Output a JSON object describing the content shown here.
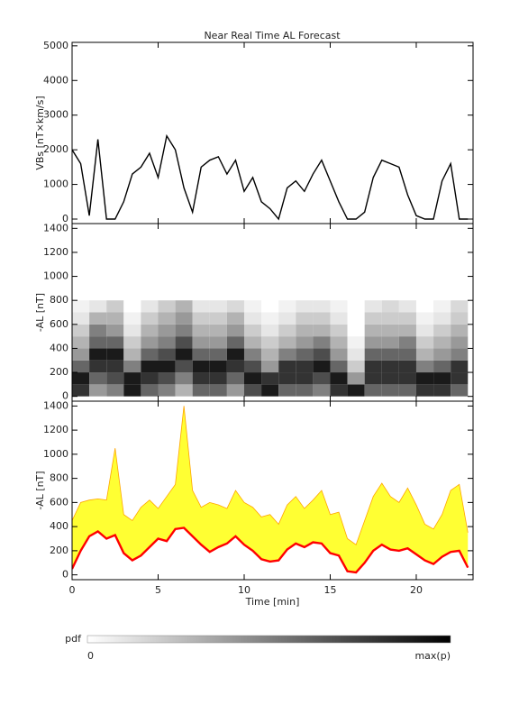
{
  "chart_data": [
    {
      "type": "line",
      "title": "Near Real Time AL Forecast",
      "ylabel": "VBs [nT×km/s]",
      "x": [
        0,
        0.5,
        1,
        1.5,
        2,
        2.5,
        3,
        3.5,
        4,
        4.5,
        5,
        5.5,
        6,
        6.5,
        7,
        7.5,
        8,
        8.5,
        9,
        9.5,
        10,
        10.5,
        11,
        11.5,
        12,
        12.5,
        13,
        13.5,
        14,
        14.5,
        15,
        15.5,
        16,
        16.5,
        17,
        17.5,
        18,
        18.5,
        19,
        19.5,
        20,
        20.5,
        21,
        21.5,
        22,
        22.5,
        23
      ],
      "series": [
        {
          "color": "#000000",
          "values": [
            2000,
            1600,
            100,
            2300,
            0,
            0,
            500,
            1300,
            1500,
            1900,
            1200,
            2400,
            2000,
            900,
            200,
            1500,
            1700,
            1800,
            1300,
            1700,
            800,
            1200,
            500,
            300,
            0,
            900,
            1100,
            800,
            1300,
            1700,
            1100,
            500,
            0,
            0,
            200,
            1200,
            1700,
            1600,
            1500,
            700,
            100,
            0,
            0,
            1100,
            1600,
            0,
            0
          ]
        }
      ],
      "xlim": [
        0,
        23.3
      ],
      "xticks": [
        0,
        5,
        10,
        15,
        20
      ],
      "ylim": [
        -130,
        5100
      ],
      "yticks": [
        0,
        1000,
        2000,
        3000,
        4000,
        5000
      ]
    },
    {
      "type": "heatmap",
      "ylabel": "-AL [nT]",
      "xbins": [
        0,
        1,
        2,
        3,
        4,
        5,
        6,
        7,
        8,
        9,
        10,
        11,
        12,
        13,
        14,
        15,
        16,
        17,
        18,
        19,
        20,
        21,
        22,
        23
      ],
      "ybins": [
        0,
        100,
        200,
        300,
        400,
        500,
        600,
        700,
        800
      ],
      "z": [
        [
          0.8,
          0.4,
          0.5,
          0.9,
          0.6,
          0.5,
          0.3,
          0.6,
          0.6,
          0.4,
          0.7,
          0.9,
          0.6,
          0.6,
          0.5,
          0.8,
          0.9,
          0.6,
          0.6,
          0.6,
          0.8,
          0.8,
          0.6
        ],
        [
          0.9,
          0.6,
          0.7,
          0.9,
          0.8,
          0.7,
          0.5,
          0.8,
          0.8,
          0.6,
          0.9,
          0.8,
          0.8,
          0.8,
          0.7,
          0.9,
          0.4,
          0.8,
          0.8,
          0.8,
          0.9,
          0.9,
          0.8
        ],
        [
          0.6,
          0.8,
          0.8,
          0.5,
          0.9,
          0.9,
          0.7,
          0.9,
          0.9,
          0.8,
          0.7,
          0.4,
          0.8,
          0.8,
          0.9,
          0.6,
          0.2,
          0.8,
          0.8,
          0.8,
          0.5,
          0.6,
          0.8
        ],
        [
          0.4,
          0.9,
          0.9,
          0.3,
          0.6,
          0.7,
          0.9,
          0.6,
          0.6,
          0.9,
          0.5,
          0.3,
          0.5,
          0.6,
          0.7,
          0.4,
          0.1,
          0.6,
          0.6,
          0.6,
          0.3,
          0.4,
          0.5
        ],
        [
          0.3,
          0.6,
          0.6,
          0.2,
          0.4,
          0.5,
          0.7,
          0.4,
          0.4,
          0.6,
          0.3,
          0.2,
          0.3,
          0.4,
          0.5,
          0.3,
          0.05,
          0.4,
          0.4,
          0.5,
          0.2,
          0.3,
          0.4
        ],
        [
          0.2,
          0.5,
          0.4,
          0.1,
          0.3,
          0.4,
          0.5,
          0.3,
          0.3,
          0.4,
          0.2,
          0.1,
          0.2,
          0.3,
          0.3,
          0.2,
          0,
          0.3,
          0.3,
          0.3,
          0.1,
          0.2,
          0.3
        ],
        [
          0.1,
          0.3,
          0.3,
          0.05,
          0.2,
          0.3,
          0.4,
          0.2,
          0.2,
          0.3,
          0.1,
          0.05,
          0.1,
          0.2,
          0.2,
          0.1,
          0,
          0.2,
          0.2,
          0.2,
          0.05,
          0.1,
          0.2
        ],
        [
          0.05,
          0.1,
          0.2,
          0,
          0.1,
          0.2,
          0.3,
          0.1,
          0.1,
          0.15,
          0.05,
          0,
          0.05,
          0.1,
          0.1,
          0.05,
          0,
          0.1,
          0.15,
          0.1,
          0,
          0.05,
          0.15
        ]
      ],
      "colors": [
        "#ffffff",
        "#000000"
      ],
      "colorbar_label": "pdf",
      "zlim": [
        0,
        1
      ],
      "zticks": [
        0,
        {
          "value": 1,
          "label": "max(p)"
        }
      ],
      "xlim": [
        0,
        23.3
      ],
      "xticks": [
        0,
        5,
        10,
        15,
        20
      ],
      "ylim": [
        -40,
        1440
      ],
      "yticks": [
        0,
        200,
        400,
        600,
        800,
        1000,
        1200,
        1400
      ]
    },
    {
      "type": "band",
      "ylabel": "-AL [nT]",
      "xlabel": "Time [min]",
      "x": [
        0,
        0.5,
        1,
        1.5,
        2,
        2.5,
        3,
        3.5,
        4,
        4.5,
        5,
        5.5,
        6,
        6.5,
        7,
        7.5,
        8,
        8.5,
        9,
        9.5,
        10,
        10.5,
        11,
        11.5,
        12,
        12.5,
        13,
        13.5,
        14,
        14.5,
        15,
        15.5,
        16,
        16.5,
        17,
        17.5,
        18,
        18.5,
        19,
        19.5,
        20,
        20.5,
        21,
        21.5,
        22,
        22.5,
        23
      ],
      "series": [
        {
          "color": "#ffa500",
          "values": [
            450,
            600,
            620,
            630,
            620,
            1050,
            500,
            450,
            560,
            620,
            550,
            650,
            750,
            1400,
            700,
            560,
            600,
            580,
            550,
            700,
            600,
            560,
            480,
            500,
            420,
            580,
            650,
            550,
            620,
            700,
            500,
            520,
            300,
            250,
            450,
            650,
            760,
            650,
            600,
            720,
            580,
            420,
            380,
            500,
            700,
            750,
            350
          ]
        },
        {
          "color": "#ff0000",
          "values": [
            50,
            200,
            320,
            360,
            300,
            330,
            180,
            120,
            160,
            230,
            300,
            280,
            380,
            390,
            320,
            250,
            190,
            230,
            260,
            320,
            250,
            200,
            130,
            110,
            120,
            210,
            260,
            230,
            270,
            260,
            180,
            160,
            30,
            20,
            100,
            200,
            250,
            210,
            200,
            220,
            170,
            120,
            90,
            150,
            190,
            200,
            60
          ]
        }
      ],
      "fill": "#ffff33",
      "xlim": [
        0,
        23.3
      ],
      "xticks": [
        0,
        5,
        10,
        15,
        20
      ],
      "ylim": [
        -40,
        1440
      ],
      "yticks": [
        0,
        200,
        400,
        600,
        800,
        1000,
        1200,
        1400
      ]
    }
  ]
}
